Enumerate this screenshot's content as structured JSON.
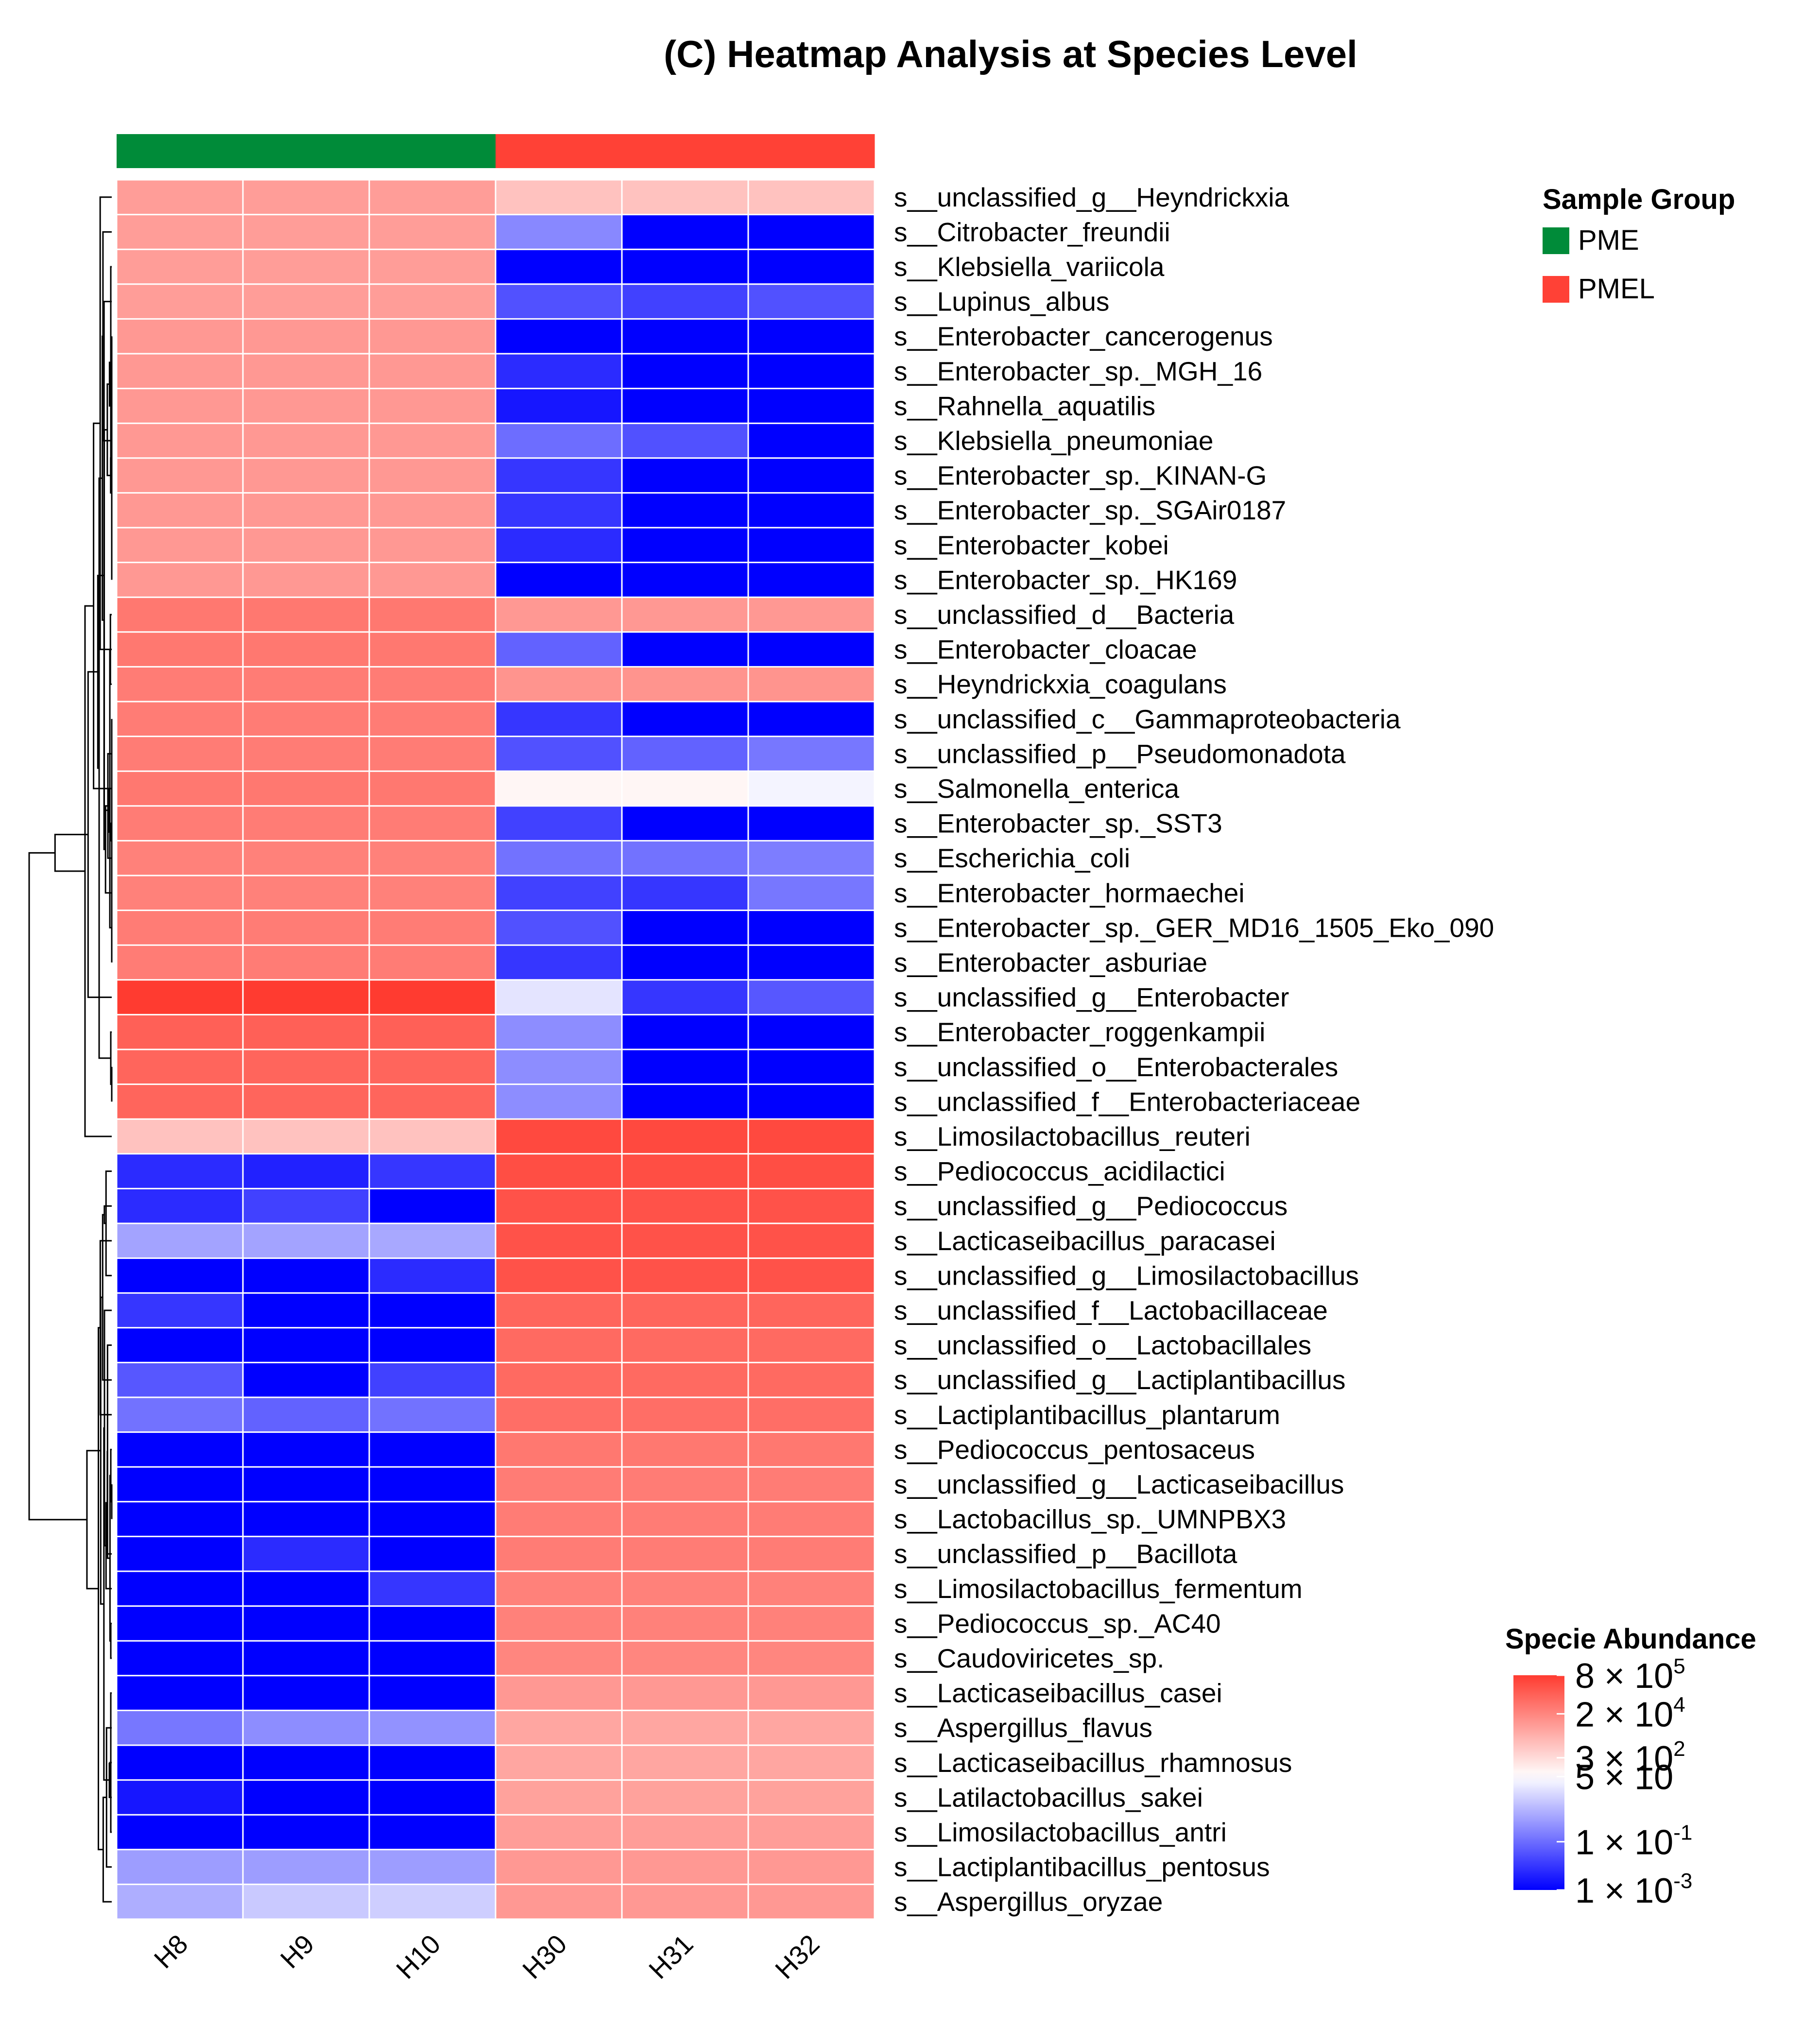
{
  "chart_data": {
    "type": "heatmap",
    "title": "(C) Heatmap Analysis at Species Level",
    "columns": [
      "H8",
      "H9",
      "H10",
      "H30",
      "H31",
      "H32"
    ],
    "column_groups": [
      "PME",
      "PME",
      "PME",
      "PMEL",
      "PMEL",
      "PMEL"
    ],
    "group_legend": {
      "title": "Sample Group",
      "items": [
        {
          "label": "PME",
          "color": "#008B39"
        },
        {
          "label": "PMEL",
          "color": "#FF4136"
        }
      ]
    },
    "color_scale": {
      "title": "Specie Abundance",
      "log10_min": -3,
      "log10_mid": 1.7,
      "log10_max": 5.9,
      "low_color": "#0000FF",
      "mid_color": "#FFFFFF",
      "high_color": "#FF3B30",
      "ticks": [
        {
          "log10": 5.9,
          "mantissa": "8 × 10",
          "exponent": "5"
        },
        {
          "log10": 4.3,
          "mantissa": "2 × 10",
          "exponent": "4"
        },
        {
          "log10": 2.48,
          "mantissa": "3 × 10",
          "exponent": "2"
        },
        {
          "log10": 1.7,
          "mantissa": "5 × 10",
          "exponent": ""
        },
        {
          "log10": -1,
          "mantissa": "1 × 10",
          "exponent": "-1"
        },
        {
          "log10": -3,
          "mantissa": "1 × 10",
          "exponent": "-3"
        }
      ]
    },
    "rows": [
      {
        "label": "s__unclassified_g__Heyndrickxia",
        "values": [
          3.8,
          3.8,
          3.8,
          3.0,
          3.0,
          3.0
        ]
      },
      {
        "label": "s__Citrobacter_freundii",
        "values": [
          3.8,
          3.8,
          3.8,
          -0.5,
          -3.0,
          -3.0
        ]
      },
      {
        "label": "s__Klebsiella_variicola",
        "values": [
          3.8,
          3.8,
          3.8,
          -3.0,
          -3.0,
          -3.0
        ]
      },
      {
        "label": "s__Lupinus_albus",
        "values": [
          3.8,
          3.8,
          3.8,
          -1.5,
          -1.8,
          -1.5
        ]
      },
      {
        "label": "s__Enterobacter_cancerogenus",
        "values": [
          3.9,
          3.9,
          3.9,
          -3.0,
          -3.0,
          -3.0
        ]
      },
      {
        "label": "s__Enterobacter_sp._MGH_16",
        "values": [
          3.9,
          3.9,
          3.9,
          -2.2,
          -3.0,
          -3.0
        ]
      },
      {
        "label": "s__Rahnella_aquatilis",
        "values": [
          3.9,
          3.9,
          3.9,
          -2.6,
          -3.0,
          -3.0
        ]
      },
      {
        "label": "s__Klebsiella_pneumoniae",
        "values": [
          3.9,
          3.9,
          3.9,
          -1.0,
          -1.5,
          -3.0
        ]
      },
      {
        "label": "s__Enterobacter_sp._KINAN-G",
        "values": [
          3.9,
          3.9,
          3.9,
          -2.0,
          -3.0,
          -3.0
        ]
      },
      {
        "label": "s__Enterobacter_sp._SGAir0187",
        "values": [
          3.9,
          3.9,
          3.9,
          -2.0,
          -3.0,
          -3.0
        ]
      },
      {
        "label": "s__Enterobacter_kobei",
        "values": [
          3.9,
          3.9,
          3.9,
          -2.2,
          -3.0,
          -3.0
        ]
      },
      {
        "label": "s__Enterobacter_sp._HK169",
        "values": [
          3.9,
          3.9,
          3.9,
          -3.0,
          -3.0,
          -3.0
        ]
      },
      {
        "label": "s__unclassified_d__Bacteria",
        "values": [
          4.6,
          4.6,
          4.6,
          3.9,
          3.9,
          3.9
        ]
      },
      {
        "label": "s__Enterobacter_cloacae",
        "values": [
          4.6,
          4.6,
          4.6,
          -1.2,
          -3.0,
          -3.0
        ]
      },
      {
        "label": "s__Heyndrickxia_coagulans",
        "values": [
          4.5,
          4.5,
          4.5,
          4.0,
          4.0,
          4.0
        ]
      },
      {
        "label": "s__unclassified_c__Gammaproteobacteria",
        "values": [
          4.5,
          4.5,
          4.5,
          -2.0,
          -3.0,
          -3.0
        ]
      },
      {
        "label": "s__unclassified_p__Pseudomonadota",
        "values": [
          4.5,
          4.5,
          4.5,
          -1.5,
          -1.2,
          -0.8
        ]
      },
      {
        "label": "s__Salmonella_enterica",
        "values": [
          4.6,
          4.6,
          4.6,
          1.9,
          1.9,
          1.5
        ]
      },
      {
        "label": "s__Enterobacter_sp._SST3",
        "values": [
          4.5,
          4.5,
          4.5,
          -1.8,
          -3.0,
          -3.0
        ]
      },
      {
        "label": "s__Escherichia_coli",
        "values": [
          4.4,
          4.4,
          4.4,
          -0.9,
          -0.9,
          -0.7
        ]
      },
      {
        "label": "s__Enterobacter_hormaechei",
        "values": [
          4.4,
          4.4,
          4.4,
          -1.8,
          -2.0,
          -0.8
        ]
      },
      {
        "label": "s__Enterobacter_sp._GER_MD16_1505_Eko_090",
        "values": [
          4.5,
          4.5,
          4.5,
          -1.5,
          -3.0,
          -3.0
        ]
      },
      {
        "label": "s__Enterobacter_asburiae",
        "values": [
          4.5,
          4.5,
          4.5,
          -2.0,
          -3.0,
          -3.0
        ]
      },
      {
        "label": "s__unclassified_g__Enterobacter",
        "values": [
          5.9,
          5.9,
          5.9,
          1.2,
          -2.0,
          -1.4
        ]
      },
      {
        "label": "s__Enterobacter_roggenkampii",
        "values": [
          5.1,
          5.1,
          5.1,
          -0.4,
          -3.0,
          -3.0
        ]
      },
      {
        "label": "s__unclassified_o__Enterobacterales",
        "values": [
          5.0,
          5.0,
          5.0,
          -0.4,
          -3.0,
          -3.0
        ]
      },
      {
        "label": "s__unclassified_f__Enterobacteriaceae",
        "values": [
          5.0,
          5.0,
          5.0,
          -0.4,
          -3.0,
          -3.0
        ]
      },
      {
        "label": "s__Limosilactobacillus_reuteri",
        "values": [
          3.0,
          3.0,
          3.0,
          5.6,
          5.6,
          5.6
        ]
      },
      {
        "label": "s__Pediococcus_acidilactici",
        "values": [
          -2.2,
          -2.4,
          -2.0,
          5.5,
          5.5,
          5.5
        ]
      },
      {
        "label": "s__unclassified_g__Pediococcus",
        "values": [
          -2.2,
          -1.8,
          -3.0,
          5.4,
          5.4,
          5.4
        ]
      },
      {
        "label": "s__Lacticaseibacillus_paracasei",
        "values": [
          0.0,
          0.0,
          0.1,
          5.4,
          5.4,
          5.4
        ]
      },
      {
        "label": "s__unclassified_g__Limosilactobacillus",
        "values": [
          -3.0,
          -3.0,
          -2.2,
          5.4,
          5.4,
          5.4
        ]
      },
      {
        "label": "s__unclassified_f__Lactobacillaceae",
        "values": [
          -2.0,
          -3.0,
          -3.0,
          5.0,
          5.0,
          5.0
        ]
      },
      {
        "label": "s__unclassified_o__Lactobacillales",
        "values": [
          -3.0,
          -3.0,
          -3.0,
          4.9,
          4.9,
          4.9
        ]
      },
      {
        "label": "s__unclassified_g__Lactiplantibacillus",
        "values": [
          -1.4,
          -3.0,
          -1.8,
          4.9,
          4.9,
          4.9
        ]
      },
      {
        "label": "s__Lactiplantibacillus_plantarum",
        "values": [
          -0.9,
          -1.2,
          -0.9,
          4.8,
          4.8,
          4.8
        ]
      },
      {
        "label": "s__Pediococcus_pentosaceus",
        "values": [
          -3.0,
          -3.0,
          -3.0,
          4.6,
          4.6,
          4.6
        ]
      },
      {
        "label": "s__unclassified_g__Lacticaseibacillus",
        "values": [
          -3.0,
          -3.0,
          -3.0,
          4.5,
          4.5,
          4.5
        ]
      },
      {
        "label": "s__Lactobacillus_sp._UMNPBX3",
        "values": [
          -3.0,
          -3.0,
          -3.0,
          4.5,
          4.5,
          4.5
        ]
      },
      {
        "label": "s__unclassified_p__Bacillota",
        "values": [
          -3.0,
          -2.2,
          -3.0,
          4.5,
          4.5,
          4.5
        ]
      },
      {
        "label": "s__Limosilactobacillus_fermentum",
        "values": [
          -3.0,
          -3.0,
          -2.0,
          4.4,
          4.4,
          4.4
        ]
      },
      {
        "label": "s__Pediococcus_sp._AC40",
        "values": [
          -3.0,
          -3.0,
          -3.0,
          4.4,
          4.4,
          4.4
        ]
      },
      {
        "label": "s__Caudoviricetes_sp.",
        "values": [
          -3.0,
          -3.0,
          -3.0,
          4.3,
          4.3,
          4.3
        ]
      },
      {
        "label": "s__Lacticaseibacillus_casei",
        "values": [
          -3.0,
          -3.0,
          -3.0,
          3.9,
          3.9,
          3.9
        ]
      },
      {
        "label": "s__Aspergillus_flavus",
        "values": [
          -0.8,
          -0.4,
          -0.3,
          3.6,
          3.6,
          3.6
        ]
      },
      {
        "label": "s__Lacticaseibacillus_rhamnosus",
        "values": [
          -3.0,
          -3.0,
          -3.0,
          3.6,
          3.6,
          3.6
        ]
      },
      {
        "label": "s__Latilactobacillus_sakei",
        "values": [
          -2.6,
          -3.0,
          -3.0,
          3.7,
          3.7,
          3.7
        ]
      },
      {
        "label": "s__Limosilactobacillus_antri",
        "values": [
          -3.0,
          -3.0,
          -3.0,
          3.8,
          3.8,
          3.8
        ]
      },
      {
        "label": "s__Lactiplantibacillus_pentosus",
        "values": [
          -0.1,
          -0.1,
          -0.1,
          3.9,
          3.9,
          3.9
        ]
      },
      {
        "label": "s__Aspergillus_oryzae",
        "values": [
          0.2,
          0.7,
          0.8,
          3.9,
          3.9,
          3.9
        ]
      }
    ]
  }
}
